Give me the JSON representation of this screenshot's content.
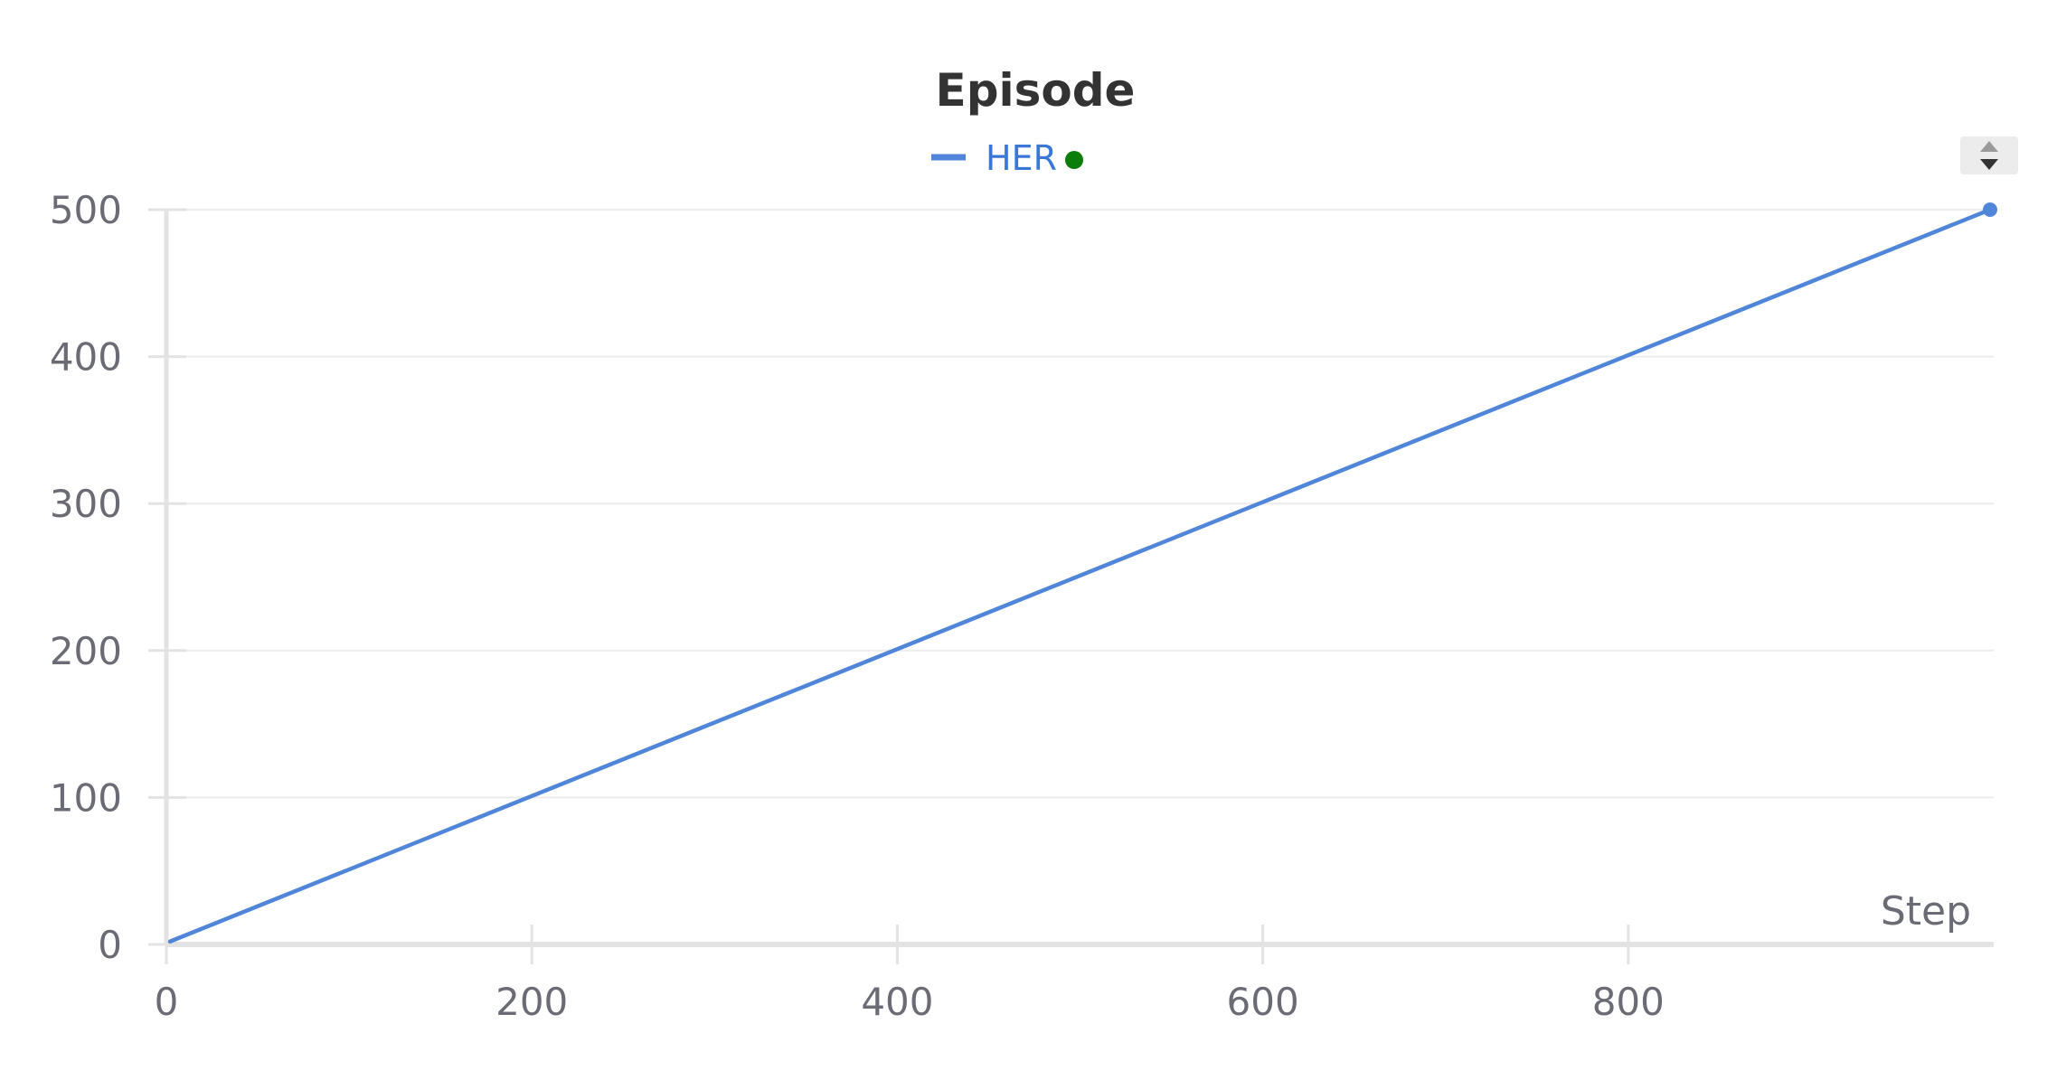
{
  "chart_data": {
    "type": "line",
    "title": "Episode",
    "xlabel": "Step",
    "ylabel": "",
    "xlim": [
      0,
      1000
    ],
    "ylim": [
      0,
      500
    ],
    "x_ticks": [
      0,
      200,
      400,
      600,
      800
    ],
    "y_ticks": [
      0,
      100,
      200,
      300,
      400,
      500
    ],
    "grid": true,
    "legend": {
      "placement": "top-center",
      "status_color": "#0a7d0a"
    },
    "series": [
      {
        "name": "HER",
        "color": "#4f86d9",
        "x": [
          2,
          998
        ],
        "y": [
          2,
          500
        ]
      }
    ]
  },
  "colors": {
    "axis": "#e3e3e3",
    "grid": "#ececec",
    "tick_text": "#6b6b76",
    "title": "#333333",
    "legend_text": "#3a78d8"
  },
  "legend_scroll": {
    "up_icon": "triangle-up-icon",
    "down_icon": "triangle-down-icon"
  }
}
